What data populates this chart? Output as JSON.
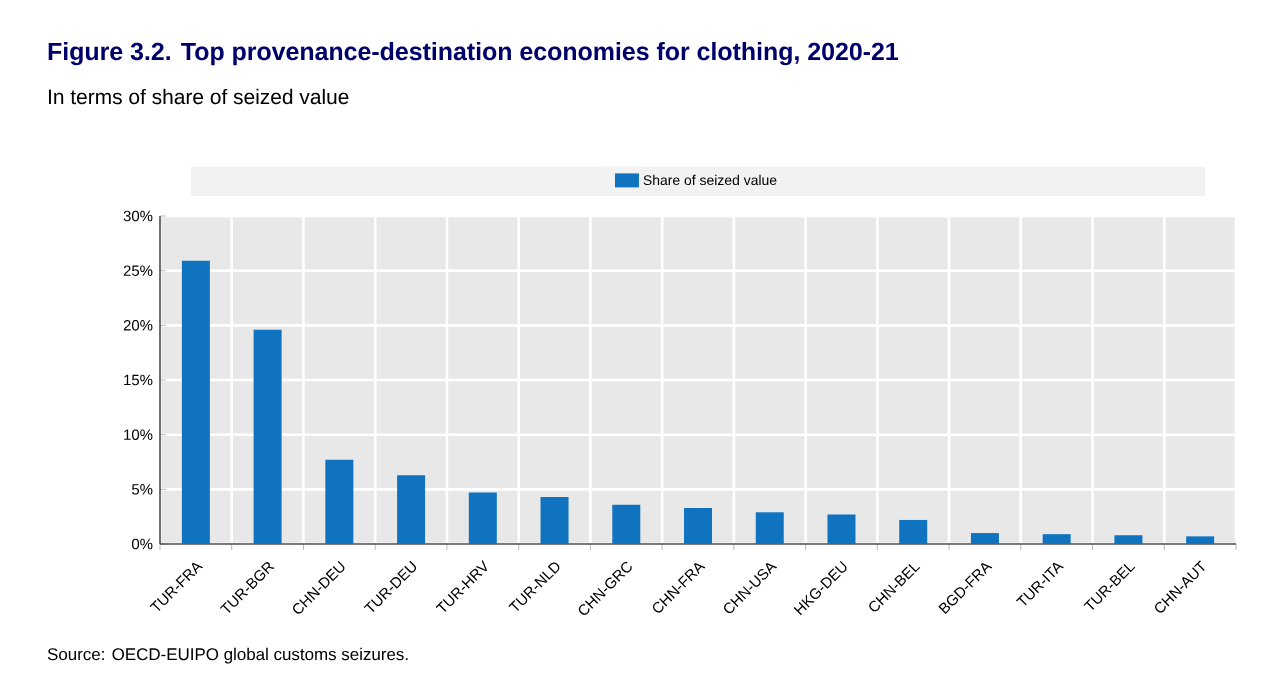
{
  "chart_data": {
    "type": "bar",
    "title": "Figure 3.2. Top provenance-destination economies for clothing, 2020-21",
    "subtitle": "In terms of share of seized value",
    "categories": [
      "TUR-FRA",
      "TUR-BGR",
      "CHN-DEU",
      "TUR-DEU",
      "TUR-HRV",
      "TUR-NLD",
      "CHN-GRC",
      "CHN-FRA",
      "CHN-USA",
      "HKG-DEU",
      "CHN-BEL",
      "BGD-FRA",
      "TUR-ITA",
      "TUR-BEL",
      "CHN-AUT"
    ],
    "series": [
      {
        "name": "Share of seized value",
        "color": "#0f73c0",
        "values": [
          25.9,
          19.6,
          7.7,
          6.3,
          4.7,
          4.3,
          3.6,
          3.3,
          2.9,
          2.7,
          2.2,
          1.0,
          0.9,
          0.8,
          0.7
        ]
      }
    ],
    "ylim": [
      0,
      30
    ],
    "yticks": [
      {
        "value": 0,
        "label": "0%"
      },
      {
        "value": 5,
        "label": "5%"
      },
      {
        "value": 10,
        "label": "10%"
      },
      {
        "value": 15,
        "label": "15%"
      },
      {
        "value": 20,
        "label": "20%"
      },
      {
        "value": 25,
        "label": "25%"
      },
      {
        "value": 30,
        "label": "30%"
      }
    ],
    "grid": true,
    "legend": "top",
    "annotations": [
      "Source: OECD-EUIPO global customs seizures."
    ]
  }
}
